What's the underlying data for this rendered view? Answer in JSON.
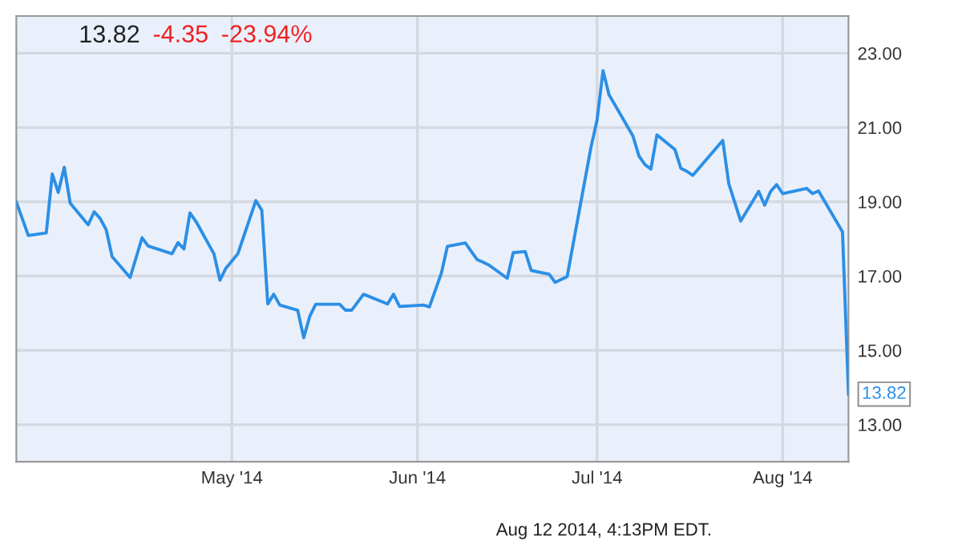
{
  "chart_data": {
    "type": "line",
    "title": "13.82",
    "annotations": [
      "-4.35",
      "-23.94%",
      "Aug 12 2014, 4:13PM EDT.",
      {
        "text": "13.82",
        "x": "2014-08-12",
        "y": 13.82
      }
    ],
    "x": [
      "2014-03-26",
      "2014-03-28",
      "2014-03-31",
      "2014-04-01",
      "2014-04-02",
      "2014-04-03",
      "2014-04-04",
      "2014-04-07",
      "2014-04-08",
      "2014-04-09",
      "2014-04-10",
      "2014-04-11",
      "2014-04-14",
      "2014-04-16",
      "2014-04-17",
      "2014-04-21",
      "2014-04-22",
      "2014-04-23",
      "2014-04-24",
      "2014-04-25",
      "2014-04-28",
      "2014-04-29",
      "2014-04-30",
      "2014-05-02",
      "2014-05-05",
      "2014-05-06",
      "2014-05-07",
      "2014-05-08",
      "2014-05-09",
      "2014-05-12",
      "2014-05-13",
      "2014-05-14",
      "2014-05-15",
      "2014-05-19",
      "2014-05-20",
      "2014-05-21",
      "2014-05-23",
      "2014-05-27",
      "2014-05-28",
      "2014-05-29",
      "2014-06-02",
      "2014-06-03",
      "2014-06-05",
      "2014-06-06",
      "2014-06-09",
      "2014-06-10",
      "2014-06-11",
      "2014-06-12",
      "2014-06-13",
      "2014-06-16",
      "2014-06-17",
      "2014-06-19",
      "2014-06-20",
      "2014-06-23",
      "2014-06-24",
      "2014-06-26",
      "2014-06-30",
      "2014-07-01",
      "2014-07-02",
      "2014-07-03",
      "2014-07-07",
      "2014-07-08",
      "2014-07-09",
      "2014-07-10",
      "2014-07-11",
      "2014-07-14",
      "2014-07-15",
      "2014-07-16",
      "2014-07-17",
      "2014-07-22",
      "2014-07-23",
      "2014-07-25",
      "2014-07-28",
      "2014-07-29",
      "2014-07-30",
      "2014-07-31",
      "2014-08-01",
      "2014-08-05",
      "2014-08-06",
      "2014-08-07",
      "2014-08-11",
      "2014-08-12"
    ],
    "series": [
      {
        "color": "#2b8fe6",
        "values": [
          18.99,
          18.09,
          18.16,
          19.75,
          19.25,
          19.93,
          18.96,
          18.38,
          18.73,
          18.55,
          18.25,
          17.52,
          16.96,
          18.03,
          17.81,
          17.6,
          17.9,
          17.73,
          18.7,
          18.47,
          17.6,
          16.89,
          17.21,
          17.6,
          19.03,
          18.77,
          16.25,
          16.51,
          16.22,
          16.08,
          15.34,
          15.91,
          16.24,
          16.24,
          16.08,
          16.08,
          16.51,
          16.25,
          16.51,
          16.18,
          16.22,
          16.17,
          17.08,
          17.8,
          17.89,
          17.66,
          17.44,
          17.37,
          17.29,
          16.94,
          17.63,
          17.66,
          17.15,
          17.05,
          16.83,
          16.98,
          20.48,
          21.2,
          22.53,
          21.88,
          20.77,
          20.23,
          20.0,
          19.88,
          20.8,
          20.41,
          19.9,
          19.82,
          19.71,
          20.65,
          19.49,
          18.48,
          19.28,
          18.91,
          19.28,
          19.46,
          19.22,
          19.36,
          19.22,
          19.29,
          18.19,
          13.82
        ]
      }
    ],
    "xlim": [
      "2014-03-26",
      "2014-08-12"
    ],
    "xticks": [
      {
        "value": "2014-05-01",
        "label": "May '14"
      },
      {
        "value": "2014-06-01",
        "label": "Jun '14"
      },
      {
        "value": "2014-07-01",
        "label": "Jul '14"
      },
      {
        "value": "2014-08-01",
        "label": "Aug '14"
      }
    ],
    "ylim": [
      12,
      24
    ],
    "yticks": [
      {
        "value": 13,
        "label": "13.00"
      },
      {
        "value": 15,
        "label": "15.00"
      },
      {
        "value": 17,
        "label": "17.00"
      },
      {
        "value": 19,
        "label": "19.00"
      },
      {
        "value": 21,
        "label": "21.00"
      },
      {
        "value": 23,
        "label": "23.00"
      }
    ],
    "grid": true
  }
}
